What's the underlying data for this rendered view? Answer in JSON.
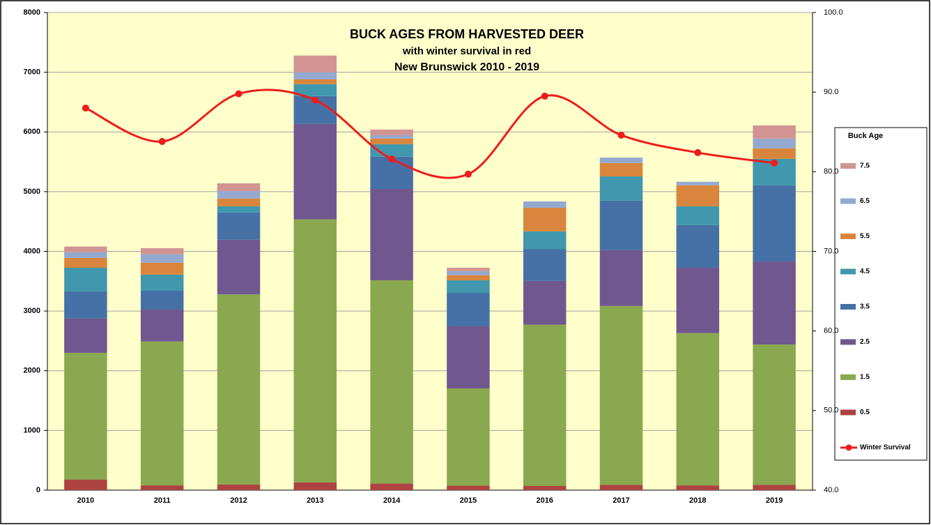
{
  "chart_data": {
    "type": "bar",
    "stacked": true,
    "title": "BUCK AGES FROM HARVESTED DEER",
    "subtitle": [
      "with winter survival in red",
      "New Brunswick 2010 - 2019"
    ],
    "legend_title": "Buck Age",
    "categories": [
      "2010",
      "2011",
      "2012",
      "2013",
      "2014",
      "2015",
      "2016",
      "2017",
      "2018",
      "2019"
    ],
    "series": [
      {
        "name": "0.5",
        "color": "#ad4341",
        "values": [
          175,
          80,
          95,
          130,
          110,
          75,
          70,
          90,
          80,
          90
        ]
      },
      {
        "name": "1.5",
        "color": "#8aa84f",
        "values": [
          2125,
          2410,
          3185,
          4405,
          3405,
          1630,
          2700,
          2995,
          2550,
          2350
        ]
      },
      {
        "name": "2.5",
        "color": "#70578f",
        "values": [
          575,
          535,
          915,
          1600,
          1530,
          1040,
          735,
          935,
          1095,
          1390
        ]
      },
      {
        "name": "3.5",
        "color": "#4571a6",
        "values": [
          455,
          315,
          455,
          465,
          540,
          560,
          535,
          830,
          715,
          1275
        ]
      },
      {
        "name": "4.5",
        "color": "#4197ad",
        "values": [
          395,
          270,
          105,
          200,
          210,
          210,
          295,
          405,
          315,
          445
        ]
      },
      {
        "name": "5.5",
        "color": "#da853d",
        "values": [
          165,
          200,
          130,
          80,
          95,
          85,
          395,
          225,
          350,
          175
        ]
      },
      {
        "name": "6.5",
        "color": "#94a9d0",
        "values": [
          95,
          140,
          125,
          120,
          55,
          70,
          105,
          90,
          60,
          165
        ]
      },
      {
        "name": "7.5",
        "color": "#d29493",
        "values": [
          95,
          105,
          130,
          280,
          95,
          55,
          0,
          0,
          0,
          220
        ]
      },
      {
        "name": "Winter Survival",
        "color": "#ee1c1c",
        "type": "line",
        "axis": "y2",
        "smooth": true,
        "values": [
          88.0,
          83.8,
          89.8,
          89.0,
          81.6,
          79.7,
          89.5,
          84.6,
          82.4,
          81.1
        ]
      }
    ],
    "ylim": [
      0,
      8000
    ],
    "yticks": [
      0,
      1000,
      2000,
      3000,
      4000,
      5000,
      6000,
      7000,
      8000
    ],
    "y2lim": [
      40,
      100
    ],
    "y2ticks": [
      {
        "value": 40,
        "label": "40.0"
      },
      {
        "value": 50,
        "label": "50.0"
      },
      {
        "value": 60,
        "label": "60.0"
      },
      {
        "value": 70,
        "label": "70.0"
      },
      {
        "value": 80,
        "label": "80.0"
      },
      {
        "value": 90,
        "label": "90.0"
      },
      {
        "value": 100,
        "label": "100.0"
      }
    ],
    "grid": true,
    "legend": "right"
  }
}
